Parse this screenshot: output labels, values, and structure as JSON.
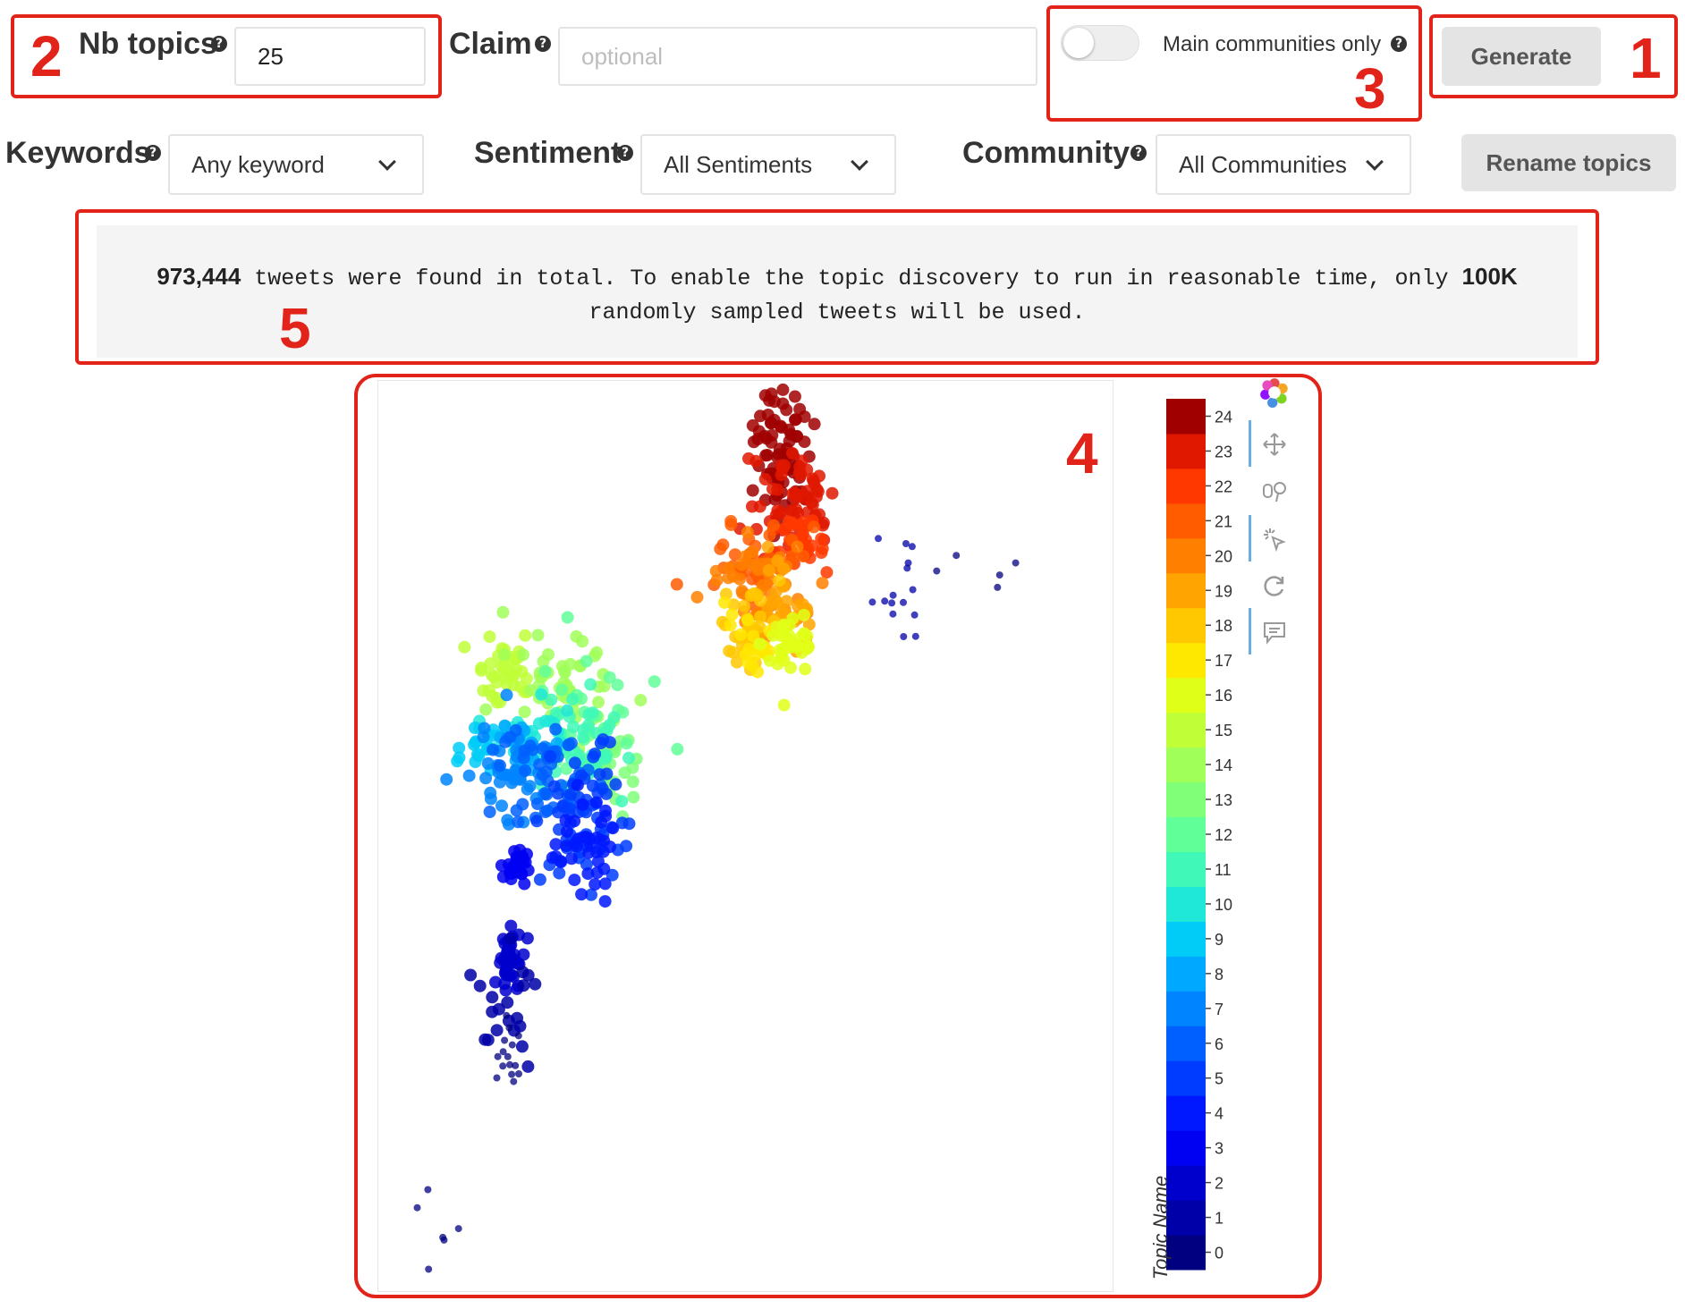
{
  "form": {
    "nb_topics": {
      "label": "Nb topics",
      "value": "25"
    },
    "claim": {
      "label": "Claim",
      "placeholder": "optional"
    },
    "main_communities": {
      "label": "Main communities only",
      "enabled": false
    },
    "generate_label": "Generate",
    "keywords": {
      "label": "Keywords",
      "selected": "Any keyword"
    },
    "sentiment": {
      "label": "Sentiment",
      "selected": "All Sentiments"
    },
    "community": {
      "label": "Community",
      "selected": "All Communities"
    },
    "rename_label": "Rename topics",
    "help_glyph": "?"
  },
  "notice": {
    "count": "973,444",
    "text_a": " tweets were found in total. To enable the topic discovery to run in reasonable time, only ",
    "sample": "100K",
    "text_b": "randomly sampled tweets will be used."
  },
  "annotations": [
    "1",
    "2",
    "3",
    "4",
    "5"
  ],
  "chart_data": {
    "type": "scatter",
    "colorbar": {
      "title": "Topic Name",
      "ticks": [
        "0",
        "1",
        "2",
        "3",
        "4",
        "5",
        "6",
        "7",
        "8",
        "9",
        "10",
        "11",
        "12",
        "13",
        "14",
        "15",
        "16",
        "17",
        "18",
        "19",
        "20",
        "21",
        "22",
        "23",
        "24"
      ],
      "colors": [
        "#000080",
        "#0000a8",
        "#0000cd",
        "#0000f2",
        "#0018ff",
        "#003cff",
        "#0060ff",
        "#0084ff",
        "#00a8ff",
        "#00ccf7",
        "#20e8d8",
        "#40f8b8",
        "#60ff98",
        "#80ff78",
        "#a0ff58",
        "#c0ff38",
        "#e0ff18",
        "#ffe800",
        "#ffc800",
        "#ffa400",
        "#ff8000",
        "#ff5c00",
        "#ff3800",
        "#e01800",
        "#a00000"
      ]
    },
    "toolbar_icons": [
      "bokeh-logo-icon",
      "pan-icon",
      "wheel-zoom-icon",
      "tap-icon",
      "reset-icon",
      "hover-icon"
    ],
    "clusters": [
      {
        "topic": 24,
        "x": 0.55,
        "y": 0.07,
        "n": 80,
        "sx": 0.02,
        "sy": 0.04
      },
      {
        "topic": 23,
        "x": 0.56,
        "y": 0.13,
        "n": 60,
        "sx": 0.03,
        "sy": 0.03
      },
      {
        "topic": 22,
        "x": 0.58,
        "y": 0.18,
        "n": 30,
        "sx": 0.02,
        "sy": 0.02
      },
      {
        "topic": 21,
        "x": 0.51,
        "y": 0.2,
        "n": 40,
        "sx": 0.03,
        "sy": 0.02
      },
      {
        "topic": 20,
        "x": 0.52,
        "y": 0.23,
        "n": 50,
        "sx": 0.03,
        "sy": 0.03
      },
      {
        "topic": 19,
        "x": 0.55,
        "y": 0.25,
        "n": 30,
        "sx": 0.02,
        "sy": 0.02
      },
      {
        "topic": 18,
        "x": 0.5,
        "y": 0.27,
        "n": 30,
        "sx": 0.02,
        "sy": 0.02
      },
      {
        "topic": 17,
        "x": 0.51,
        "y": 0.28,
        "n": 20,
        "sx": 0.02,
        "sy": 0.02
      },
      {
        "topic": 16,
        "x": 0.56,
        "y": 0.29,
        "n": 40,
        "sx": 0.02,
        "sy": 0.02
      },
      {
        "topic": 15,
        "x": 0.17,
        "y": 0.31,
        "n": 40,
        "sx": 0.02,
        "sy": 0.02
      },
      {
        "topic": 14,
        "x": 0.26,
        "y": 0.33,
        "n": 50,
        "sx": 0.04,
        "sy": 0.03
      },
      {
        "topic": 13,
        "x": 0.32,
        "y": 0.43,
        "n": 30,
        "sx": 0.02,
        "sy": 0.02
      },
      {
        "topic": 12,
        "x": 0.28,
        "y": 0.38,
        "n": 40,
        "sx": 0.04,
        "sy": 0.03
      },
      {
        "topic": 11,
        "x": 0.27,
        "y": 0.4,
        "n": 40,
        "sx": 0.03,
        "sy": 0.03
      },
      {
        "topic": 10,
        "x": 0.2,
        "y": 0.38,
        "n": 30,
        "sx": 0.03,
        "sy": 0.02
      },
      {
        "topic": 9,
        "x": 0.14,
        "y": 0.4,
        "n": 20,
        "sx": 0.03,
        "sy": 0.02
      },
      {
        "topic": 8,
        "x": 0.2,
        "y": 0.41,
        "n": 20,
        "sx": 0.02,
        "sy": 0.02
      },
      {
        "topic": 7,
        "x": 0.18,
        "y": 0.43,
        "n": 40,
        "sx": 0.03,
        "sy": 0.03
      },
      {
        "topic": 6,
        "x": 0.23,
        "y": 0.44,
        "n": 50,
        "sx": 0.03,
        "sy": 0.03
      },
      {
        "topic": 5,
        "x": 0.27,
        "y": 0.47,
        "n": 60,
        "sx": 0.03,
        "sy": 0.04
      },
      {
        "topic": 4,
        "x": 0.28,
        "y": 0.51,
        "n": 40,
        "sx": 0.02,
        "sy": 0.03
      },
      {
        "topic": 3,
        "x": 0.19,
        "y": 0.53,
        "n": 30,
        "sx": 0.01,
        "sy": 0.01
      },
      {
        "topic": 2,
        "x": 0.18,
        "y": 0.63,
        "n": 40,
        "sx": 0.01,
        "sy": 0.02
      },
      {
        "topic": 1,
        "x": 0.17,
        "y": 0.69,
        "n": 20,
        "sx": 0.02,
        "sy": 0.03
      },
      {
        "topic": 0,
        "x": 0.18,
        "y": 0.74,
        "n": 15,
        "sx": 0.01,
        "sy": 0.02
      },
      {
        "topic": 0,
        "x": 0.08,
        "y": 0.95,
        "n": 6,
        "sx": 0.02,
        "sy": 0.03
      },
      {
        "topic": 1,
        "x": 0.71,
        "y": 0.23,
        "n": 15,
        "sx": 0.02,
        "sy": 0.03
      },
      {
        "topic": 0,
        "x": 0.78,
        "y": 0.21,
        "n": 5,
        "sx": 0.04,
        "sy": 0.01
      }
    ]
  }
}
